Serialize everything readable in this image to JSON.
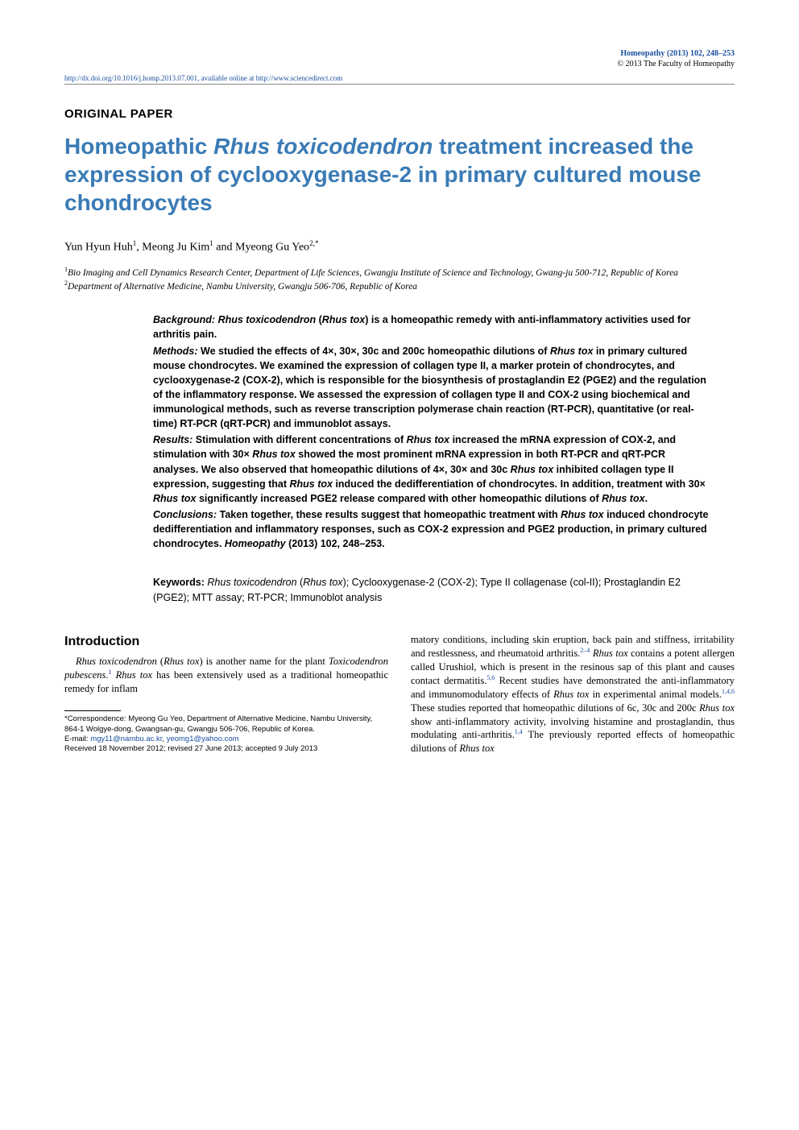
{
  "header": {
    "journal": "Homeopathy (2013) 102, 248–253",
    "copyright": "© 2013 The Faculty of Homeopathy",
    "doi": "http://dx.doi.org/10.1016/j.homp.2013.07.001, available online at http://www.sciencedirect.com"
  },
  "section_type": "ORIGINAL PAPER",
  "title_pre": "Homeopathic ",
  "title_em": "Rhus toxicodendron",
  "title_post": " treatment increased the expression of cyclooxygenase-2 in primary cultured mouse chondrocytes",
  "authors": {
    "a1_name": "Yun Hyun Huh",
    "a1_sup": "1",
    "a2_name": "Meong Ju Kim",
    "a2_sup": "1",
    "a3_name": "Myeong Gu Yeo",
    "a3_sup": "2,*",
    "sep1": ", ",
    "sep2": " and "
  },
  "affiliations": {
    "aff1_sup": "1",
    "aff1": "Bio Imaging and Cell Dynamics Research Center, Department of Life Sciences, Gwangju Institute of Science and Technology, Gwang-ju 500-712, Republic of Korea",
    "aff2_sup": "2",
    "aff2": "Department of Alternative Medicine, Nambu University, Gwangju 506-706, Republic of Korea"
  },
  "abstract": {
    "bg_label": "Background:",
    "bg_pre": "   ",
    "bg_em1": "Rhus toxicodendron",
    "bg_mid": " (",
    "bg_em2": "Rhus tox",
    "bg_post": ") is a homeopathic remedy with anti-inflammatory activities used for arthritis pain.",
    "m_label": "Methods:",
    "m_pre": "   We studied the effects of 4×, 30×, 30c and 200c homeopathic dilutions of ",
    "m_em1": "Rhus tox",
    "m_post": " in primary cultured mouse chondrocytes. We examined the expression of collagen type II, a marker protein of chondrocytes, and cyclooxygenase-2 (COX-2), which is responsible for the biosynthesis of prostaglandin E2 (PGE2) and the regulation of the inflammatory response. We assessed the expression of collagen type II and COX-2 using biochemical and immunological methods, such as reverse transcription polymerase chain reaction (RT-PCR), quantitative (or real-time) RT-PCR (qRT-PCR) and immunoblot assays.",
    "r_label": "Results:",
    "r_pre": "   Stimulation with different concentrations of ",
    "r_em1": "Rhus tox",
    "r_mid1": " increased the mRNA expression of COX-2, and stimulation with 30× ",
    "r_em2": "Rhus tox",
    "r_mid2": " showed the most prominent mRNA expression in both RT-PCR and qRT-PCR analyses. We also observed that homeopathic dilutions of 4×, 30× and 30c ",
    "r_em3": "Rhus tox",
    "r_mid3": " inhibited collagen type II expression, suggesting that ",
    "r_em4": "Rhus tox",
    "r_mid4": " induced the dedifferentiation of chondrocytes. In addition, treatment with 30× ",
    "r_em5": "Rhus tox",
    "r_mid5": " significantly increased PGE2 release compared with other homeopathic dilutions of ",
    "r_em6": "Rhus tox",
    "r_post": ".",
    "c_label": "Conclusions:",
    "c_pre": "   Taken together, these results suggest that homeopathic treatment with ",
    "c_em1": "Rhus tox",
    "c_post": " induced chondrocyte dedifferentiation and inflammatory responses, such as COX-2 expression and PGE2 production, in primary cultured chondrocytes.   ",
    "citation": "Homeopathy",
    "citation_post": " (2013) 102, 248–253."
  },
  "keywords": {
    "label": "Keywords: ",
    "k1_em": "Rhus toxicodendron",
    "k1_mid": " (",
    "k1_em2": "Rhus tox",
    "k1_post": "); Cyclooxygenase-2 (COX-2); Type II collagenase (col-II); Prostaglandin E2 (PGE2); MTT assay; RT-PCR; Immunoblot analysis"
  },
  "intro": {
    "heading": "Introduction",
    "p1_em1": "Rhus toxicodendron",
    "p1_mid1": " (",
    "p1_em2": "Rhus tox",
    "p1_mid2": ") is another name for the plant ",
    "p1_em3": "Toxicodendron pubescens",
    "p1_mid3": ".",
    "p1_sup1": "1",
    "p1_mid4": " ",
    "p1_em4": "Rhus tox",
    "p1_mid5": " has been extensively used as a traditional homeopathic remedy for inflam",
    "p2_pre": "matory conditions, including skin eruption, back pain and stiffness, irritability and restlessness, and rheumatoid arthritis.",
    "p2_sup1": "2–4",
    "p2_mid1": " ",
    "p2_em1": "Rhus tox",
    "p2_mid2": " contains a potent allergen called Urushiol, which is present in the resinous sap of this plant and causes contact dermatitis.",
    "p2_sup2": "5,6",
    "p2_mid3": " Recent studies have demonstrated the anti-inflammatory and immunomodulatory effects of ",
    "p2_em2": "Rhus tox",
    "p2_mid4": " in experimental animal models.",
    "p2_sup3": "1,4,6",
    "p2_mid5": " These studies reported that homeopathic dilutions of 6c, 30c and 200c ",
    "p2_em3": "Rhus tox",
    "p2_mid6": " show anti-inflammatory activity, involving histamine and prostaglandin, thus modulating anti-arthritis.",
    "p2_sup4": "1,4",
    "p2_mid7": " The previously reported effects of homeopathic dilutions of ",
    "p2_em4": "Rhus tox"
  },
  "footnotes": {
    "corr": "*Correspondence: Myeong Gu Yeo, Department of Alternative Medicine, Nambu University, 864-1 Wolgye-dong, Gwangsan-gu, Gwangju 506-706, Republic of Korea.",
    "email_label": "E-mail: ",
    "email1": "mgy11@nambu.ac.kr",
    "email_sep": ", ",
    "email2": "yeomg1@yahoo.com",
    "received": "Received 18 November 2012; revised 27 June  2013; accepted 9 July 2013"
  }
}
